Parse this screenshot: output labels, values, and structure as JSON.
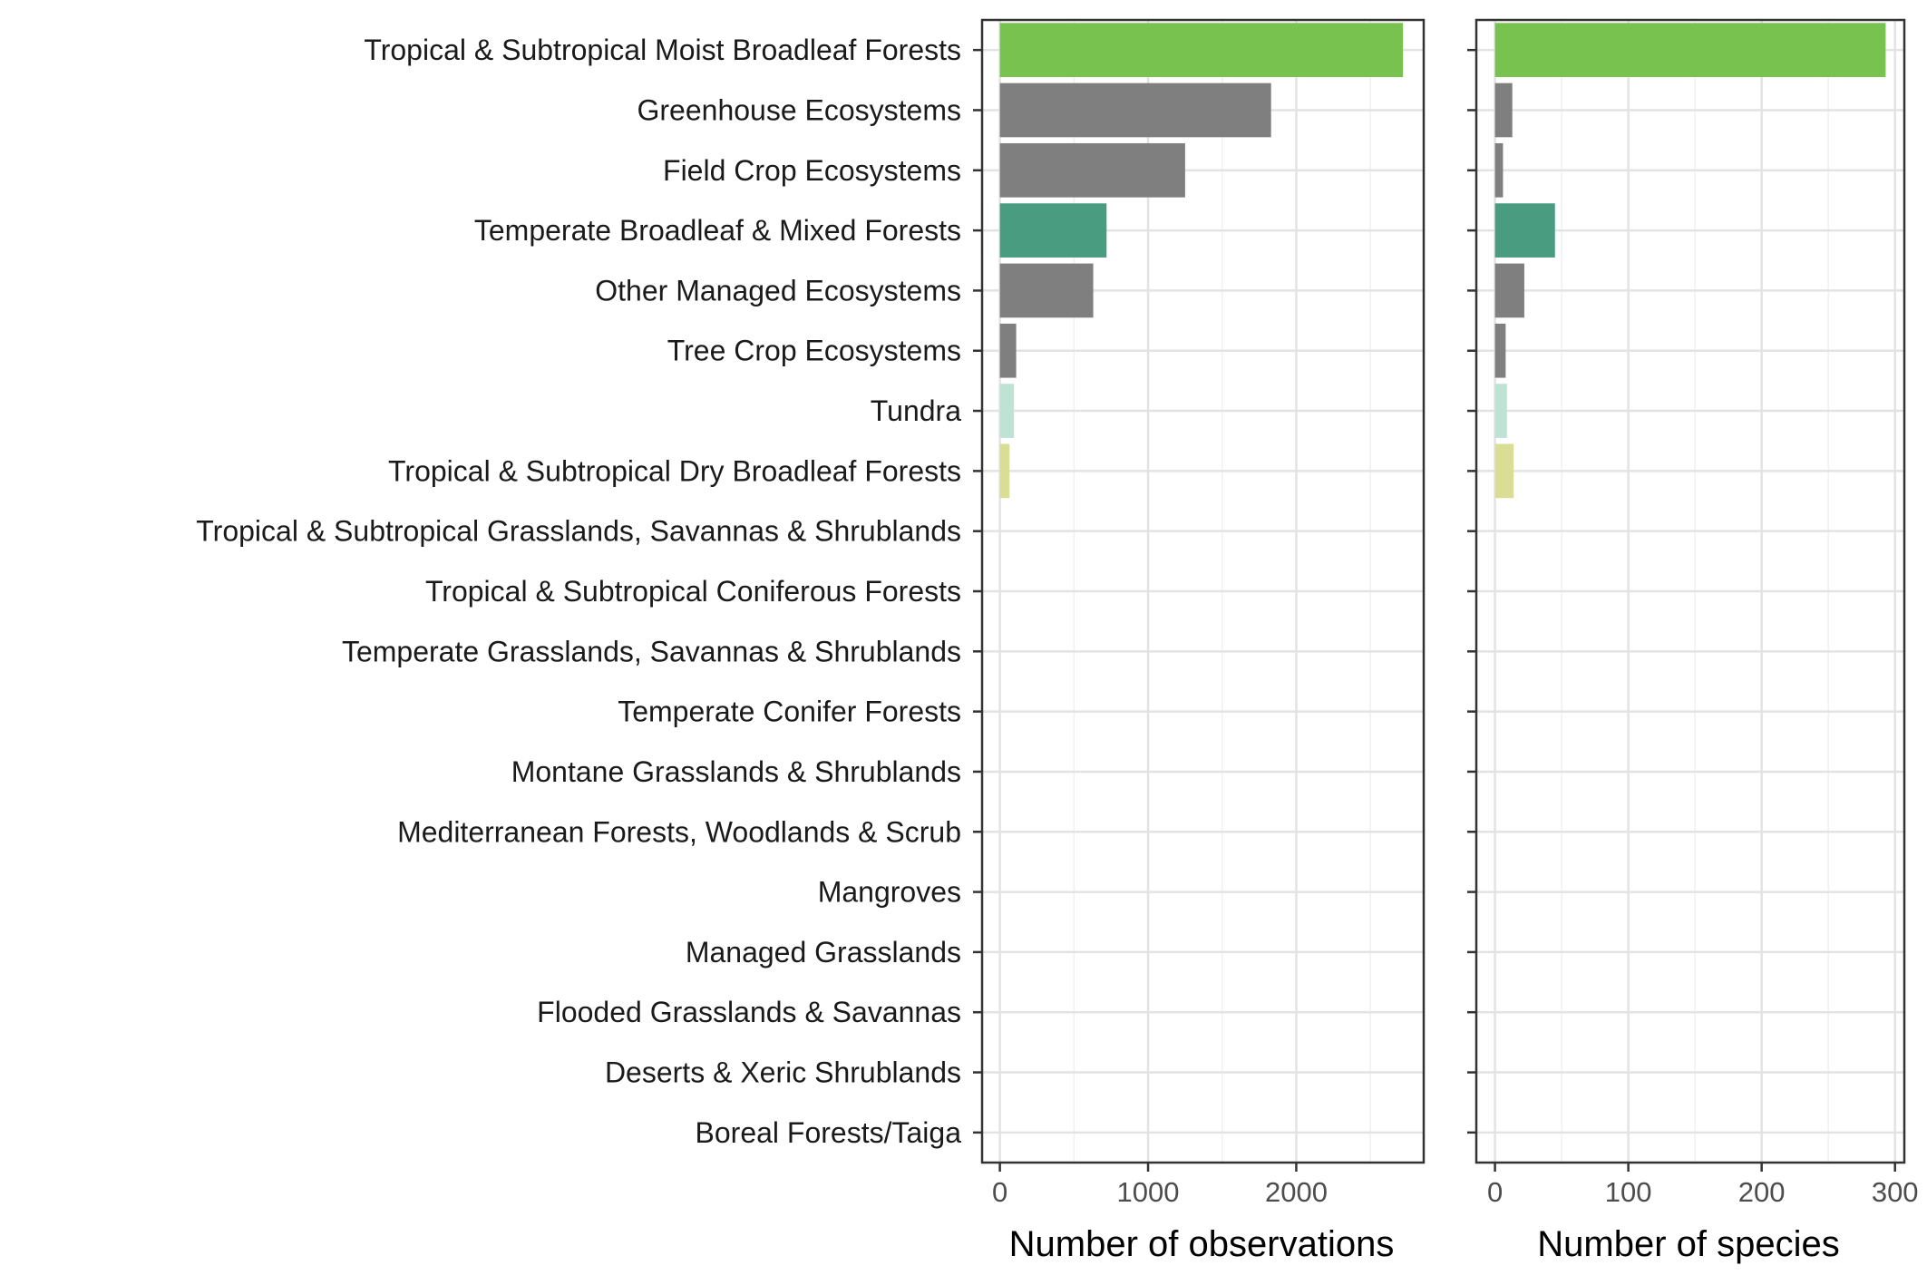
{
  "chart_data": [
    {
      "type": "bar",
      "orientation": "horizontal",
      "categories": [
        "Tropical & Subtropical Moist Broadleaf Forests",
        "Greenhouse Ecosystems",
        "Field Crop Ecosystems",
        "Temperate Broadleaf & Mixed Forests",
        "Other Managed Ecosystems",
        "Tree Crop Ecosystems",
        "Tundra",
        "Tropical & Subtropical Dry Broadleaf Forests",
        "Tropical & Subtropical Grasslands, Savannas & Shrublands",
        "Tropical & Subtropical Coniferous Forests",
        "Temperate Grasslands, Savannas & Shrublands",
        "Temperate Conifer Forests",
        "Montane Grasslands & Shrublands",
        "Mediterranean Forests, Woodlands & Scrub",
        "Mangroves",
        "Managed Grasslands",
        "Flooded Grasslands & Savannas",
        "Deserts & Xeric Shrublands",
        "Boreal Forests/Taiga"
      ],
      "values": [
        2720,
        1830,
        1250,
        720,
        630,
        110,
        95,
        65,
        0,
        0,
        0,
        0,
        0,
        0,
        0,
        0,
        0,
        0,
        0
      ],
      "colors": [
        "#78c24f",
        "#7f7f7f",
        "#7f7f7f",
        "#4a9c80",
        "#7f7f7f",
        "#7f7f7f",
        "#bde3d5",
        "#dadd94",
        "#ffffff",
        "#ffffff",
        "#ffffff",
        "#ffffff",
        "#ffffff",
        "#ffffff",
        "#ffffff",
        "#ffffff",
        "#ffffff",
        "#ffffff",
        "#ffffff"
      ],
      "xlabel": "Number of observations",
      "ylabel": "",
      "xlim": [
        -120,
        2860
      ],
      "xticks": [
        0,
        1000,
        2000
      ],
      "xticks_minor": [
        500,
        1500,
        2500
      ],
      "grid": true
    },
    {
      "type": "bar",
      "orientation": "horizontal",
      "categories": [
        "Tropical & Subtropical Moist Broadleaf Forests",
        "Greenhouse Ecosystems",
        "Field Crop Ecosystems",
        "Temperate Broadleaf & Mixed Forests",
        "Other Managed Ecosystems",
        "Tree Crop Ecosystems",
        "Tundra",
        "Tropical & Subtropical Dry Broadleaf Forests",
        "Tropical & Subtropical Grasslands, Savannas & Shrublands",
        "Tropical & Subtropical Coniferous Forests",
        "Temperate Grasslands, Savannas & Shrublands",
        "Temperate Conifer Forests",
        "Montane Grasslands & Shrublands",
        "Mediterranean Forests, Woodlands & Scrub",
        "Mangroves",
        "Managed Grasslands",
        "Flooded Grasslands & Savannas",
        "Deserts & Xeric Shrublands",
        "Boreal Forests/Taiga"
      ],
      "values": [
        293,
        13,
        6,
        45,
        22,
        8,
        9,
        14,
        0,
        0,
        0,
        0,
        0,
        0,
        0,
        0,
        0,
        0,
        0
      ],
      "colors": [
        "#78c24f",
        "#7f7f7f",
        "#7f7f7f",
        "#4a9c80",
        "#7f7f7f",
        "#7f7f7f",
        "#bde3d5",
        "#dadd94",
        "#ffffff",
        "#ffffff",
        "#ffffff",
        "#ffffff",
        "#ffffff",
        "#ffffff",
        "#ffffff",
        "#ffffff",
        "#ffffff",
        "#ffffff",
        "#ffffff"
      ],
      "xlabel": "Number of species",
      "ylabel": "",
      "xlim": [
        -14,
        307
      ],
      "xticks": [
        0,
        100,
        200,
        300
      ],
      "xticks_minor": [
        50,
        150,
        250
      ],
      "grid": true
    }
  ]
}
